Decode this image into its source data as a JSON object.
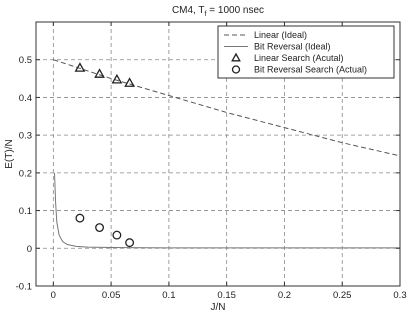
{
  "chart_data": {
    "type": "line",
    "title": {
      "prefix": "CM4, T",
      "subscript": "f",
      "suffix": " = 1000 nsec"
    },
    "xlabel": "J/N",
    "ylabel": "E(T)/N",
    "xlim": [
      -0.015,
      0.3
    ],
    "ylim": [
      -0.1,
      0.6
    ],
    "xticks": [
      0,
      0.05,
      0.1,
      0.15,
      0.2,
      0.25,
      0.3
    ],
    "xtick_labels": [
      "0",
      "0.05",
      "0.1",
      "0.15",
      "0.2",
      "0.25",
      "0.3"
    ],
    "yticks": [
      -0.1,
      0,
      0.1,
      0.2,
      0.3,
      0.4,
      0.5
    ],
    "ytick_labels": [
      "-0.1",
      "0",
      "0.1",
      "0.2",
      "0.3",
      "0.4",
      "0.5"
    ],
    "grid": true,
    "legend_position": "top-right",
    "series": [
      {
        "name": "Linear (Ideal)",
        "style": "dashed-line",
        "color": "#555555",
        "x": [
          0,
          0.05,
          0.1,
          0.15,
          0.2,
          0.25,
          0.3
        ],
        "y": [
          0.5,
          0.45,
          0.405,
          0.36,
          0.32,
          0.28,
          0.245
        ]
      },
      {
        "name": "Bit Reversal (Ideal)",
        "style": "solid-line",
        "color": "#777777",
        "x": [
          0.001,
          0.002,
          0.003,
          0.005,
          0.008,
          0.012,
          0.02,
          0.03,
          0.05,
          0.1,
          0.2,
          0.3
        ],
        "y": [
          0.2,
          0.12,
          0.07,
          0.035,
          0.018,
          0.01,
          0.005,
          0.003,
          0.002,
          0.001,
          0.001,
          0.001
        ]
      },
      {
        "name": "Linear Search (Acutal)",
        "style": "triangle-marker",
        "color": "#222222",
        "x": [
          0.023,
          0.04,
          0.055,
          0.066
        ],
        "y": [
          0.478,
          0.462,
          0.447,
          0.438
        ]
      },
      {
        "name": "Bit Reversal Search (Actual)",
        "style": "circle-marker",
        "color": "#222222",
        "x": [
          0.023,
          0.04,
          0.055,
          0.066
        ],
        "y": [
          0.08,
          0.055,
          0.035,
          0.015
        ]
      }
    ]
  }
}
